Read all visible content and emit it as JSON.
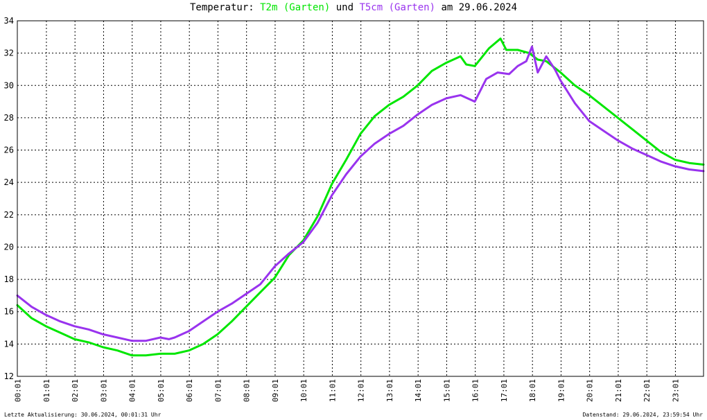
{
  "title": {
    "prefix": "Temperatur: ",
    "series1": "T2m (Garten)",
    "mid": " und ",
    "series2": "T5cm (Garten)",
    "suffix": " am 29.06.2024"
  },
  "footer": {
    "left": "Letzte Aktualisierung: 30.06.2024, 00:01:31 Uhr",
    "right": "Datenstand: 29.06.2024, 23:59:54 Uhr"
  },
  "colors": {
    "t2m": "#00e600",
    "t5cm": "#9933ee",
    "grid": "#000000",
    "background": "#ffffff"
  },
  "chart_data": {
    "type": "line",
    "ylim": [
      12,
      34
    ],
    "xlim": [
      0,
      24
    ],
    "y_ticks": [
      12,
      14,
      16,
      18,
      20,
      22,
      24,
      26,
      28,
      30,
      32,
      34
    ],
    "x_tick_labels": [
      "00:01",
      "01:01",
      "02:01",
      "03:01",
      "04:01",
      "05:01",
      "06:01",
      "07:01",
      "08:01",
      "09:01",
      "10:01",
      "11:01",
      "12:01",
      "13:01",
      "14:01",
      "15:01",
      "16:01",
      "17:01",
      "18:01",
      "19:01",
      "20:01",
      "21:01",
      "22:01",
      "23:01"
    ],
    "grid": true,
    "series": [
      {
        "name": "T2m (Garten)",
        "color": "#00e600",
        "x": [
          0.0,
          0.5,
          1.0,
          1.5,
          2.0,
          2.5,
          3.0,
          3.5,
          4.0,
          4.5,
          5.0,
          5.3,
          5.5,
          6.0,
          6.5,
          7.0,
          7.5,
          8.0,
          8.5,
          9.0,
          9.5,
          10.0,
          10.5,
          11.0,
          11.5,
          12.0,
          12.5,
          13.0,
          13.5,
          14.0,
          14.5,
          15.0,
          15.5,
          15.7,
          16.0,
          16.5,
          16.9,
          17.1,
          17.5,
          17.9,
          18.2,
          18.5,
          19.0,
          19.5,
          20.0,
          20.5,
          21.0,
          21.5,
          22.0,
          22.5,
          23.0,
          23.5,
          24.0
        ],
        "y": [
          16.4,
          15.6,
          15.1,
          14.7,
          14.3,
          14.1,
          13.8,
          13.6,
          13.3,
          13.3,
          13.4,
          13.4,
          13.4,
          13.6,
          14.0,
          14.6,
          15.4,
          16.3,
          17.2,
          18.1,
          19.5,
          20.4,
          21.9,
          23.9,
          25.4,
          27.0,
          28.1,
          28.8,
          29.3,
          30.0,
          30.9,
          31.4,
          31.8,
          31.3,
          31.2,
          32.3,
          32.9,
          32.2,
          32.2,
          32.0,
          31.6,
          31.5,
          30.8,
          30.0,
          29.4,
          28.7,
          28.0,
          27.3,
          26.6,
          25.9,
          25.4,
          25.2,
          25.1
        ]
      },
      {
        "name": "T5cm (Garten)",
        "color": "#9933ee",
        "x": [
          0.0,
          0.5,
          1.0,
          1.5,
          2.0,
          2.5,
          3.0,
          3.5,
          4.0,
          4.5,
          5.0,
          5.3,
          5.5,
          6.0,
          6.5,
          7.0,
          7.5,
          8.0,
          8.5,
          9.0,
          9.5,
          10.0,
          10.5,
          11.0,
          11.5,
          12.0,
          12.5,
          13.0,
          13.5,
          14.0,
          14.5,
          15.0,
          15.5,
          16.0,
          16.4,
          16.8,
          17.2,
          17.5,
          17.8,
          18.0,
          18.2,
          18.5,
          18.8,
          19.0,
          19.5,
          20.0,
          20.5,
          21.0,
          21.5,
          22.0,
          22.5,
          23.0,
          23.5,
          24.0
        ],
        "y": [
          17.0,
          16.3,
          15.8,
          15.4,
          15.1,
          14.9,
          14.6,
          14.4,
          14.2,
          14.2,
          14.4,
          14.3,
          14.4,
          14.8,
          15.4,
          16.0,
          16.5,
          17.1,
          17.7,
          18.8,
          19.6,
          20.3,
          21.5,
          23.2,
          24.5,
          25.6,
          26.4,
          27.0,
          27.5,
          28.2,
          28.8,
          29.2,
          29.4,
          29.0,
          30.4,
          30.8,
          30.7,
          31.2,
          31.5,
          32.4,
          30.8,
          31.8,
          31.0,
          30.3,
          28.9,
          27.8,
          27.2,
          26.6,
          26.1,
          25.7,
          25.3,
          25.0,
          24.8,
          24.7
        ]
      }
    ]
  }
}
